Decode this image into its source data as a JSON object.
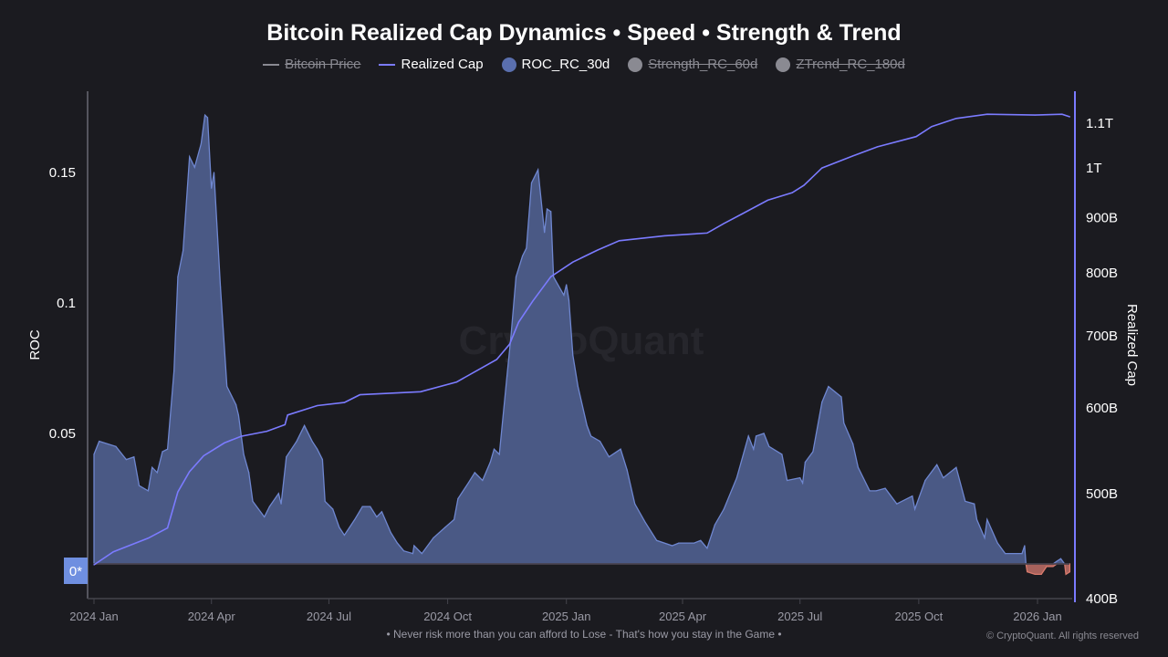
{
  "title": "Bitcoin Realized Cap Dynamics • Speed • Strength & Trend",
  "legend": [
    {
      "label": "Bitcoin Price",
      "symbol": "line",
      "color": "#8a8a92",
      "enabled": false
    },
    {
      "label": "Realized Cap",
      "symbol": "line",
      "color": "#7b7bff",
      "enabled": true
    },
    {
      "label": "ROC_RC_30d",
      "symbol": "dot",
      "color": "#5a6fae",
      "enabled": true
    },
    {
      "label": "Strength_RC_60d",
      "symbol": "dot",
      "color": "#8a8a92",
      "enabled": false
    },
    {
      "label": "ZTrend_RC_180d",
      "symbol": "dot",
      "color": "#8a8a92",
      "enabled": false
    }
  ],
  "watermark": "CryptoQuant",
  "footer": "• Never risk more than you can afford to Lose - That's how you stay in the Game •",
  "copyright": "© CryptoQuant. All rights reserved",
  "chart_data": {
    "type": "area",
    "xlabel": "",
    "x_range": [
      "2024-01-01",
      "2026-01-26"
    ],
    "x_ticks": [
      "2024 Jan",
      "2024 Apr",
      "2024 Jul",
      "2024 Oct",
      "2025 Jan",
      "2025 Apr",
      "2025 Jul",
      "2025 Oct",
      "2026 Jan"
    ],
    "x_tick_dates": [
      "2024-01-01",
      "2024-04-01",
      "2024-07-01",
      "2024-10-01",
      "2025-01-01",
      "2025-04-01",
      "2025-07-01",
      "2025-10-01",
      "2026-01-01"
    ],
    "y_left": {
      "label": "ROC",
      "range": [
        -0.013,
        0.181
      ],
      "ticks": [
        "0.05",
        "0.1",
        "0.15"
      ],
      "tick_values": [
        0.05,
        0.1,
        0.15
      ],
      "zero_label": "0*"
    },
    "y_right": {
      "label": "Realized Cap",
      "scale": "log",
      "range_billions": [
        400,
        1170
      ],
      "ticks": [
        "400B",
        "500B",
        "600B",
        "700B",
        "800B",
        "900B",
        "1T",
        "1.1T"
      ],
      "tick_values_billions": [
        400,
        500,
        600,
        700,
        800,
        900,
        1000,
        1100
      ]
    },
    "grid": false,
    "legend_position": "top",
    "colors": {
      "roc_positive_fill": "#4a5985",
      "roc_positive_line": "#6f87d0",
      "roc_negative_fill": "#a8625c",
      "roc_negative_line": "#d97a6c",
      "realized_cap_line": "#7b7bff",
      "zero_badge": "#6f8fe0"
    },
    "series": [
      {
        "name": "ROC_RC_30d",
        "axis": "left",
        "points": [
          [
            "2024-01-01",
            0.042
          ],
          [
            "2024-01-05",
            0.047
          ],
          [
            "2024-01-18",
            0.045
          ],
          [
            "2024-01-26",
            0.04
          ],
          [
            "2024-02-01",
            0.041
          ],
          [
            "2024-02-05",
            0.03
          ],
          [
            "2024-02-12",
            0.028
          ],
          [
            "2024-02-15",
            0.037
          ],
          [
            "2024-02-19",
            0.035
          ],
          [
            "2024-02-23",
            0.043
          ],
          [
            "2024-02-27",
            0.044
          ],
          [
            "2024-03-03",
            0.074
          ],
          [
            "2024-03-06",
            0.11
          ],
          [
            "2024-03-10",
            0.12
          ],
          [
            "2024-03-15",
            0.156
          ],
          [
            "2024-03-19",
            0.152
          ],
          [
            "2024-03-24",
            0.161
          ],
          [
            "2024-03-27",
            0.172
          ],
          [
            "2024-03-29",
            0.171
          ],
          [
            "2024-04-01",
            0.144
          ],
          [
            "2024-04-03",
            0.15
          ],
          [
            "2024-04-08",
            0.106
          ],
          [
            "2024-04-13",
            0.068
          ],
          [
            "2024-04-20",
            0.061
          ],
          [
            "2024-04-22",
            0.057
          ],
          [
            "2024-04-26",
            0.042
          ],
          [
            "2024-04-30",
            0.035
          ],
          [
            "2024-05-03",
            0.024
          ],
          [
            "2024-05-12",
            0.018
          ],
          [
            "2024-05-16",
            0.022
          ],
          [
            "2024-05-23",
            0.027
          ],
          [
            "2024-05-25",
            0.023
          ],
          [
            "2024-05-29",
            0.041
          ],
          [
            "2024-06-06",
            0.047
          ],
          [
            "2024-06-12",
            0.053
          ],
          [
            "2024-06-18",
            0.047
          ],
          [
            "2024-06-22",
            0.044
          ],
          [
            "2024-06-26",
            0.04
          ],
          [
            "2024-06-28",
            0.024
          ],
          [
            "2024-07-04",
            0.021
          ],
          [
            "2024-07-09",
            0.014
          ],
          [
            "2024-07-13",
            0.011
          ],
          [
            "2024-07-21",
            0.017
          ],
          [
            "2024-07-27",
            0.022
          ],
          [
            "2024-08-02",
            0.022
          ],
          [
            "2024-08-07",
            0.018
          ],
          [
            "2024-08-11",
            0.02
          ],
          [
            "2024-08-18",
            0.012
          ],
          [
            "2024-08-23",
            0.008
          ],
          [
            "2024-08-28",
            0.005
          ],
          [
            "2024-09-04",
            0.004
          ],
          [
            "2024-09-05",
            0.007
          ],
          [
            "2024-09-11",
            0.004
          ],
          [
            "2024-09-20",
            0.01
          ],
          [
            "2024-09-29",
            0.014
          ],
          [
            "2024-10-06",
            0.017
          ],
          [
            "2024-10-09",
            0.025
          ],
          [
            "2024-10-17",
            0.031
          ],
          [
            "2024-10-22",
            0.035
          ],
          [
            "2024-10-28",
            0.032
          ],
          [
            "2024-11-03",
            0.039
          ],
          [
            "2024-11-06",
            0.044
          ],
          [
            "2024-11-10",
            0.042
          ],
          [
            "2024-11-16",
            0.072
          ],
          [
            "2024-11-19",
            0.087
          ],
          [
            "2024-11-23",
            0.11
          ],
          [
            "2024-11-28",
            0.118
          ],
          [
            "2024-12-01",
            0.121
          ],
          [
            "2024-12-05",
            0.146
          ],
          [
            "2024-12-10",
            0.151
          ],
          [
            "2024-12-15",
            0.127
          ],
          [
            "2024-12-17",
            0.136
          ],
          [
            "2024-12-20",
            0.135
          ],
          [
            "2024-12-22",
            0.11
          ],
          [
            "2024-12-30",
            0.103
          ],
          [
            "2025-01-01",
            0.107
          ],
          [
            "2025-01-03",
            0.101
          ],
          [
            "2025-01-06",
            0.08
          ],
          [
            "2025-01-10",
            0.068
          ],
          [
            "2025-01-17",
            0.053
          ],
          [
            "2025-01-20",
            0.049
          ],
          [
            "2025-01-27",
            0.047
          ],
          [
            "2025-02-03",
            0.041
          ],
          [
            "2025-02-12",
            0.044
          ],
          [
            "2025-02-17",
            0.036
          ],
          [
            "2025-02-23",
            0.023
          ],
          [
            "2025-03-03",
            0.016
          ],
          [
            "2025-03-12",
            0.009
          ],
          [
            "2025-03-24",
            0.007
          ],
          [
            "2025-03-29",
            0.008
          ],
          [
            "2025-04-10",
            0.008
          ],
          [
            "2025-04-15",
            0.009
          ],
          [
            "2025-04-20",
            0.006
          ],
          [
            "2025-04-26",
            0.015
          ],
          [
            "2025-05-03",
            0.021
          ],
          [
            "2025-05-13",
            0.033
          ],
          [
            "2025-05-22",
            0.049
          ],
          [
            "2025-05-26",
            0.044
          ],
          [
            "2025-05-28",
            0.049
          ],
          [
            "2025-06-03",
            0.05
          ],
          [
            "2025-06-07",
            0.045
          ],
          [
            "2025-06-17",
            0.042
          ],
          [
            "2025-06-21",
            0.032
          ],
          [
            "2025-07-01",
            0.033
          ],
          [
            "2025-07-03",
            0.031
          ],
          [
            "2025-07-05",
            0.039
          ],
          [
            "2025-07-11",
            0.043
          ],
          [
            "2025-07-18",
            0.062
          ],
          [
            "2025-07-23",
            0.068
          ],
          [
            "2025-07-28",
            0.066
          ],
          [
            "2025-08-02",
            0.064
          ],
          [
            "2025-08-04",
            0.054
          ],
          [
            "2025-08-11",
            0.046
          ],
          [
            "2025-08-15",
            0.037
          ],
          [
            "2025-08-24",
            0.028
          ],
          [
            "2025-08-29",
            0.028
          ],
          [
            "2025-09-05",
            0.029
          ],
          [
            "2025-09-14",
            0.023
          ],
          [
            "2025-09-26",
            0.026
          ],
          [
            "2025-09-28",
            0.021
          ],
          [
            "2025-10-06",
            0.032
          ],
          [
            "2025-10-15",
            0.038
          ],
          [
            "2025-10-20",
            0.033
          ],
          [
            "2025-10-30",
            0.037
          ],
          [
            "2025-11-06",
            0.024
          ],
          [
            "2025-11-13",
            0.023
          ],
          [
            "2025-11-15",
            0.017
          ],
          [
            "2025-11-21",
            0.01
          ],
          [
            "2025-11-23",
            0.017
          ],
          [
            "2025-12-01",
            0.008
          ],
          [
            "2025-12-07",
            0.004
          ],
          [
            "2025-12-20",
            0.004
          ],
          [
            "2025-12-22",
            0.007
          ],
          [
            "2025-12-23",
            0.0
          ],
          [
            "2025-12-24",
            -0.003
          ],
          [
            "2025-12-30",
            -0.004
          ],
          [
            "2026-01-04",
            -0.004
          ],
          [
            "2026-01-08",
            -0.001
          ],
          [
            "2026-01-13",
            -0.001
          ],
          [
            "2026-01-16",
            0.001
          ],
          [
            "2026-01-19",
            0.002
          ],
          [
            "2026-01-22",
            0.0
          ],
          [
            "2026-01-23",
            -0.004
          ],
          [
            "2026-01-26",
            -0.003
          ]
        ]
      },
      {
        "name": "Realized Cap",
        "axis": "right",
        "unit": "billions USD",
        "points": [
          [
            "2024-01-01",
            429
          ],
          [
            "2024-01-16",
            441
          ],
          [
            "2024-02-12",
            454
          ],
          [
            "2024-02-27",
            464
          ],
          [
            "2024-03-06",
            501
          ],
          [
            "2024-03-15",
            523
          ],
          [
            "2024-03-26",
            541
          ],
          [
            "2024-04-11",
            556
          ],
          [
            "2024-04-24",
            564
          ],
          [
            "2024-05-14",
            570
          ],
          [
            "2024-05-28",
            578
          ],
          [
            "2024-05-30",
            590
          ],
          [
            "2024-06-22",
            602
          ],
          [
            "2024-07-13",
            606
          ],
          [
            "2024-07-25",
            616
          ],
          [
            "2024-09-10",
            620
          ],
          [
            "2024-10-08",
            633
          ],
          [
            "2024-11-08",
            664
          ],
          [
            "2024-11-18",
            686
          ],
          [
            "2024-11-25",
            719
          ],
          [
            "2024-12-06",
            752
          ],
          [
            "2024-12-20",
            792
          ],
          [
            "2025-01-06",
            817
          ],
          [
            "2025-01-25",
            838
          ],
          [
            "2025-02-11",
            855
          ],
          [
            "2025-03-18",
            864
          ],
          [
            "2025-04-20",
            869
          ],
          [
            "2025-05-03",
            887
          ],
          [
            "2025-05-17",
            905
          ],
          [
            "2025-06-06",
            932
          ],
          [
            "2025-06-25",
            947
          ],
          [
            "2025-07-04",
            962
          ],
          [
            "2025-07-18",
            998
          ],
          [
            "2025-08-11",
            1024
          ],
          [
            "2025-08-30",
            1044
          ],
          [
            "2025-09-29",
            1067
          ],
          [
            "2025-10-11",
            1090
          ],
          [
            "2025-10-30",
            1109
          ],
          [
            "2025-11-23",
            1119
          ],
          [
            "2025-12-30",
            1117
          ],
          [
            "2026-01-20",
            1119
          ],
          [
            "2026-01-26",
            1113
          ]
        ]
      }
    ]
  }
}
